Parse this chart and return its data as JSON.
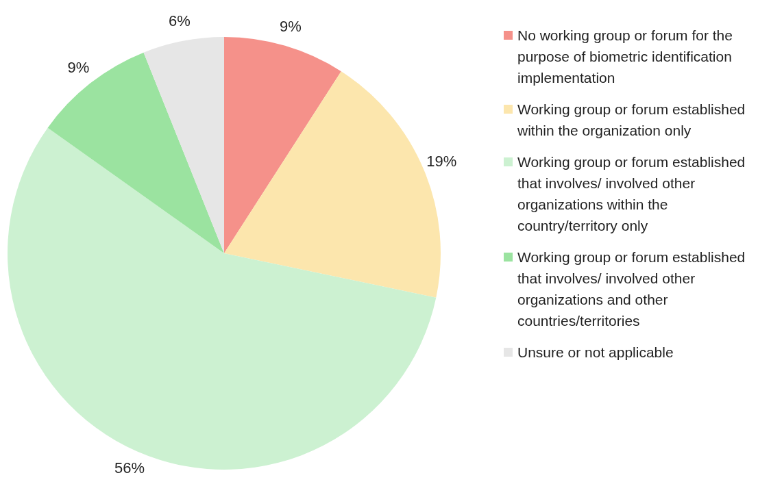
{
  "chart_data": {
    "type": "pie",
    "categories": [
      "No working group or forum for the purpose of biometric identification implementation",
      "Working group or forum established within the organization only",
      "Working group or forum established that involves/ involved other organizations within the country/territory only",
      "Working group or forum established that involves/ involved other organizations and other countries/territories",
      "Unsure or not applicable"
    ],
    "values": [
      9,
      19,
      56,
      9,
      6
    ],
    "value_labels": [
      "9%",
      "19%",
      "56%",
      "9%",
      "6%"
    ],
    "colors": [
      "#f5918a",
      "#fce6ad",
      "#ccf1d1",
      "#9be3a0",
      "#e6e6e6"
    ],
    "legend": "right"
  }
}
